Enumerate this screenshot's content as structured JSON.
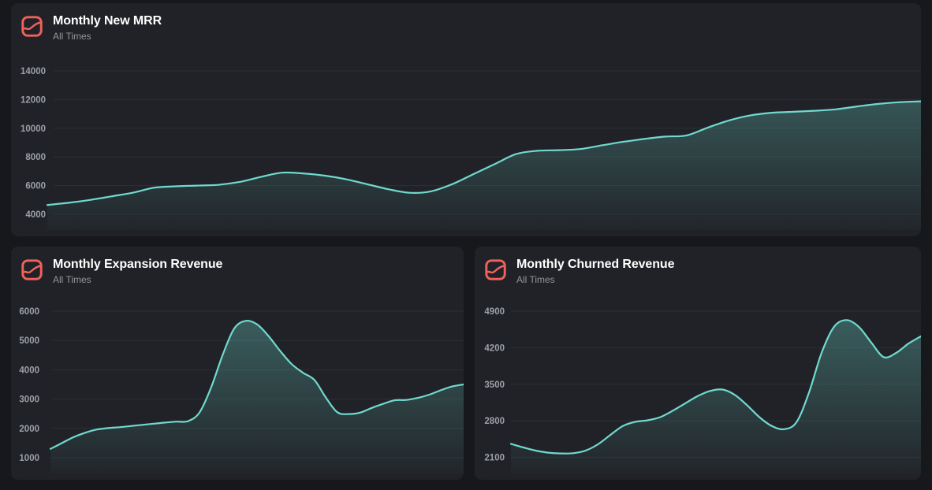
{
  "colors": {
    "page_bg": "#17181b",
    "card_bg": "#202227",
    "line": "#70d9cf",
    "area_fill": "#70d9cf",
    "icon": "#ef625c",
    "title": "#ffffff",
    "subtitle": "#94959b",
    "axis_label": "#9ba0a7",
    "gridline": "#2c2f34"
  },
  "chart_data": [
    {
      "type": "area",
      "title": "Monthly New MRR",
      "subtitle": "All Times",
      "legend": "none",
      "xlabel": "",
      "ylabel": "",
      "x_tick_labels": "hidden",
      "grid": "horizontal",
      "yticks": [
        14000,
        12000,
        10000,
        8000,
        6000,
        4000
      ],
      "ylim": [
        4000,
        14000
      ],
      "values": [
        4650,
        4800,
        5000,
        5250,
        5500,
        5850,
        5950,
        6000,
        6050,
        6250,
        6600,
        6900,
        6850,
        6700,
        6450,
        6100,
        5750,
        5500,
        5600,
        6100,
        6800,
        7500,
        8200,
        8430,
        8470,
        8550,
        8800,
        9050,
        9250,
        9420,
        9500,
        10050,
        10550,
        10900,
        11080,
        11150,
        11220,
        11320,
        11520,
        11700,
        11820,
        11880
      ]
    },
    {
      "type": "area",
      "title": "Monthly Expansion Revenue",
      "subtitle": "All Times",
      "legend": "none",
      "xlabel": "",
      "ylabel": "",
      "x_tick_labels": "hidden",
      "grid": "horizontal",
      "yticks": [
        6000,
        5000,
        4000,
        3000,
        2000,
        1000
      ],
      "ylim": [
        1000,
        6000
      ],
      "values": [
        1300,
        1500,
        1700,
        1850,
        1960,
        2010,
        2040,
        2080,
        2120,
        2160,
        2200,
        2230,
        2250,
        2550,
        3400,
        4500,
        5400,
        5670,
        5550,
        5150,
        4650,
        4200,
        3900,
        3650,
        3050,
        2550,
        2490,
        2540,
        2700,
        2840,
        2960,
        2970,
        3040,
        3150,
        3300,
        3430,
        3500
      ]
    },
    {
      "type": "area",
      "title": "Monthly Churned Revenue",
      "subtitle": "All Times",
      "legend": "none",
      "xlabel": "",
      "ylabel": "",
      "x_tick_labels": "hidden",
      "grid": "horizontal",
      "yticks": [
        4900,
        4200,
        3500,
        2800,
        2100
      ],
      "ylim": [
        2100,
        4900
      ],
      "values": [
        2360,
        2290,
        2230,
        2190,
        2175,
        2180,
        2230,
        2350,
        2530,
        2700,
        2780,
        2810,
        2870,
        2990,
        3130,
        3270,
        3370,
        3400,
        3300,
        3100,
        2870,
        2700,
        2640,
        2780,
        3350,
        4100,
        4600,
        4730,
        4600,
        4300,
        4020,
        4100,
        4280,
        4420
      ]
    }
  ]
}
